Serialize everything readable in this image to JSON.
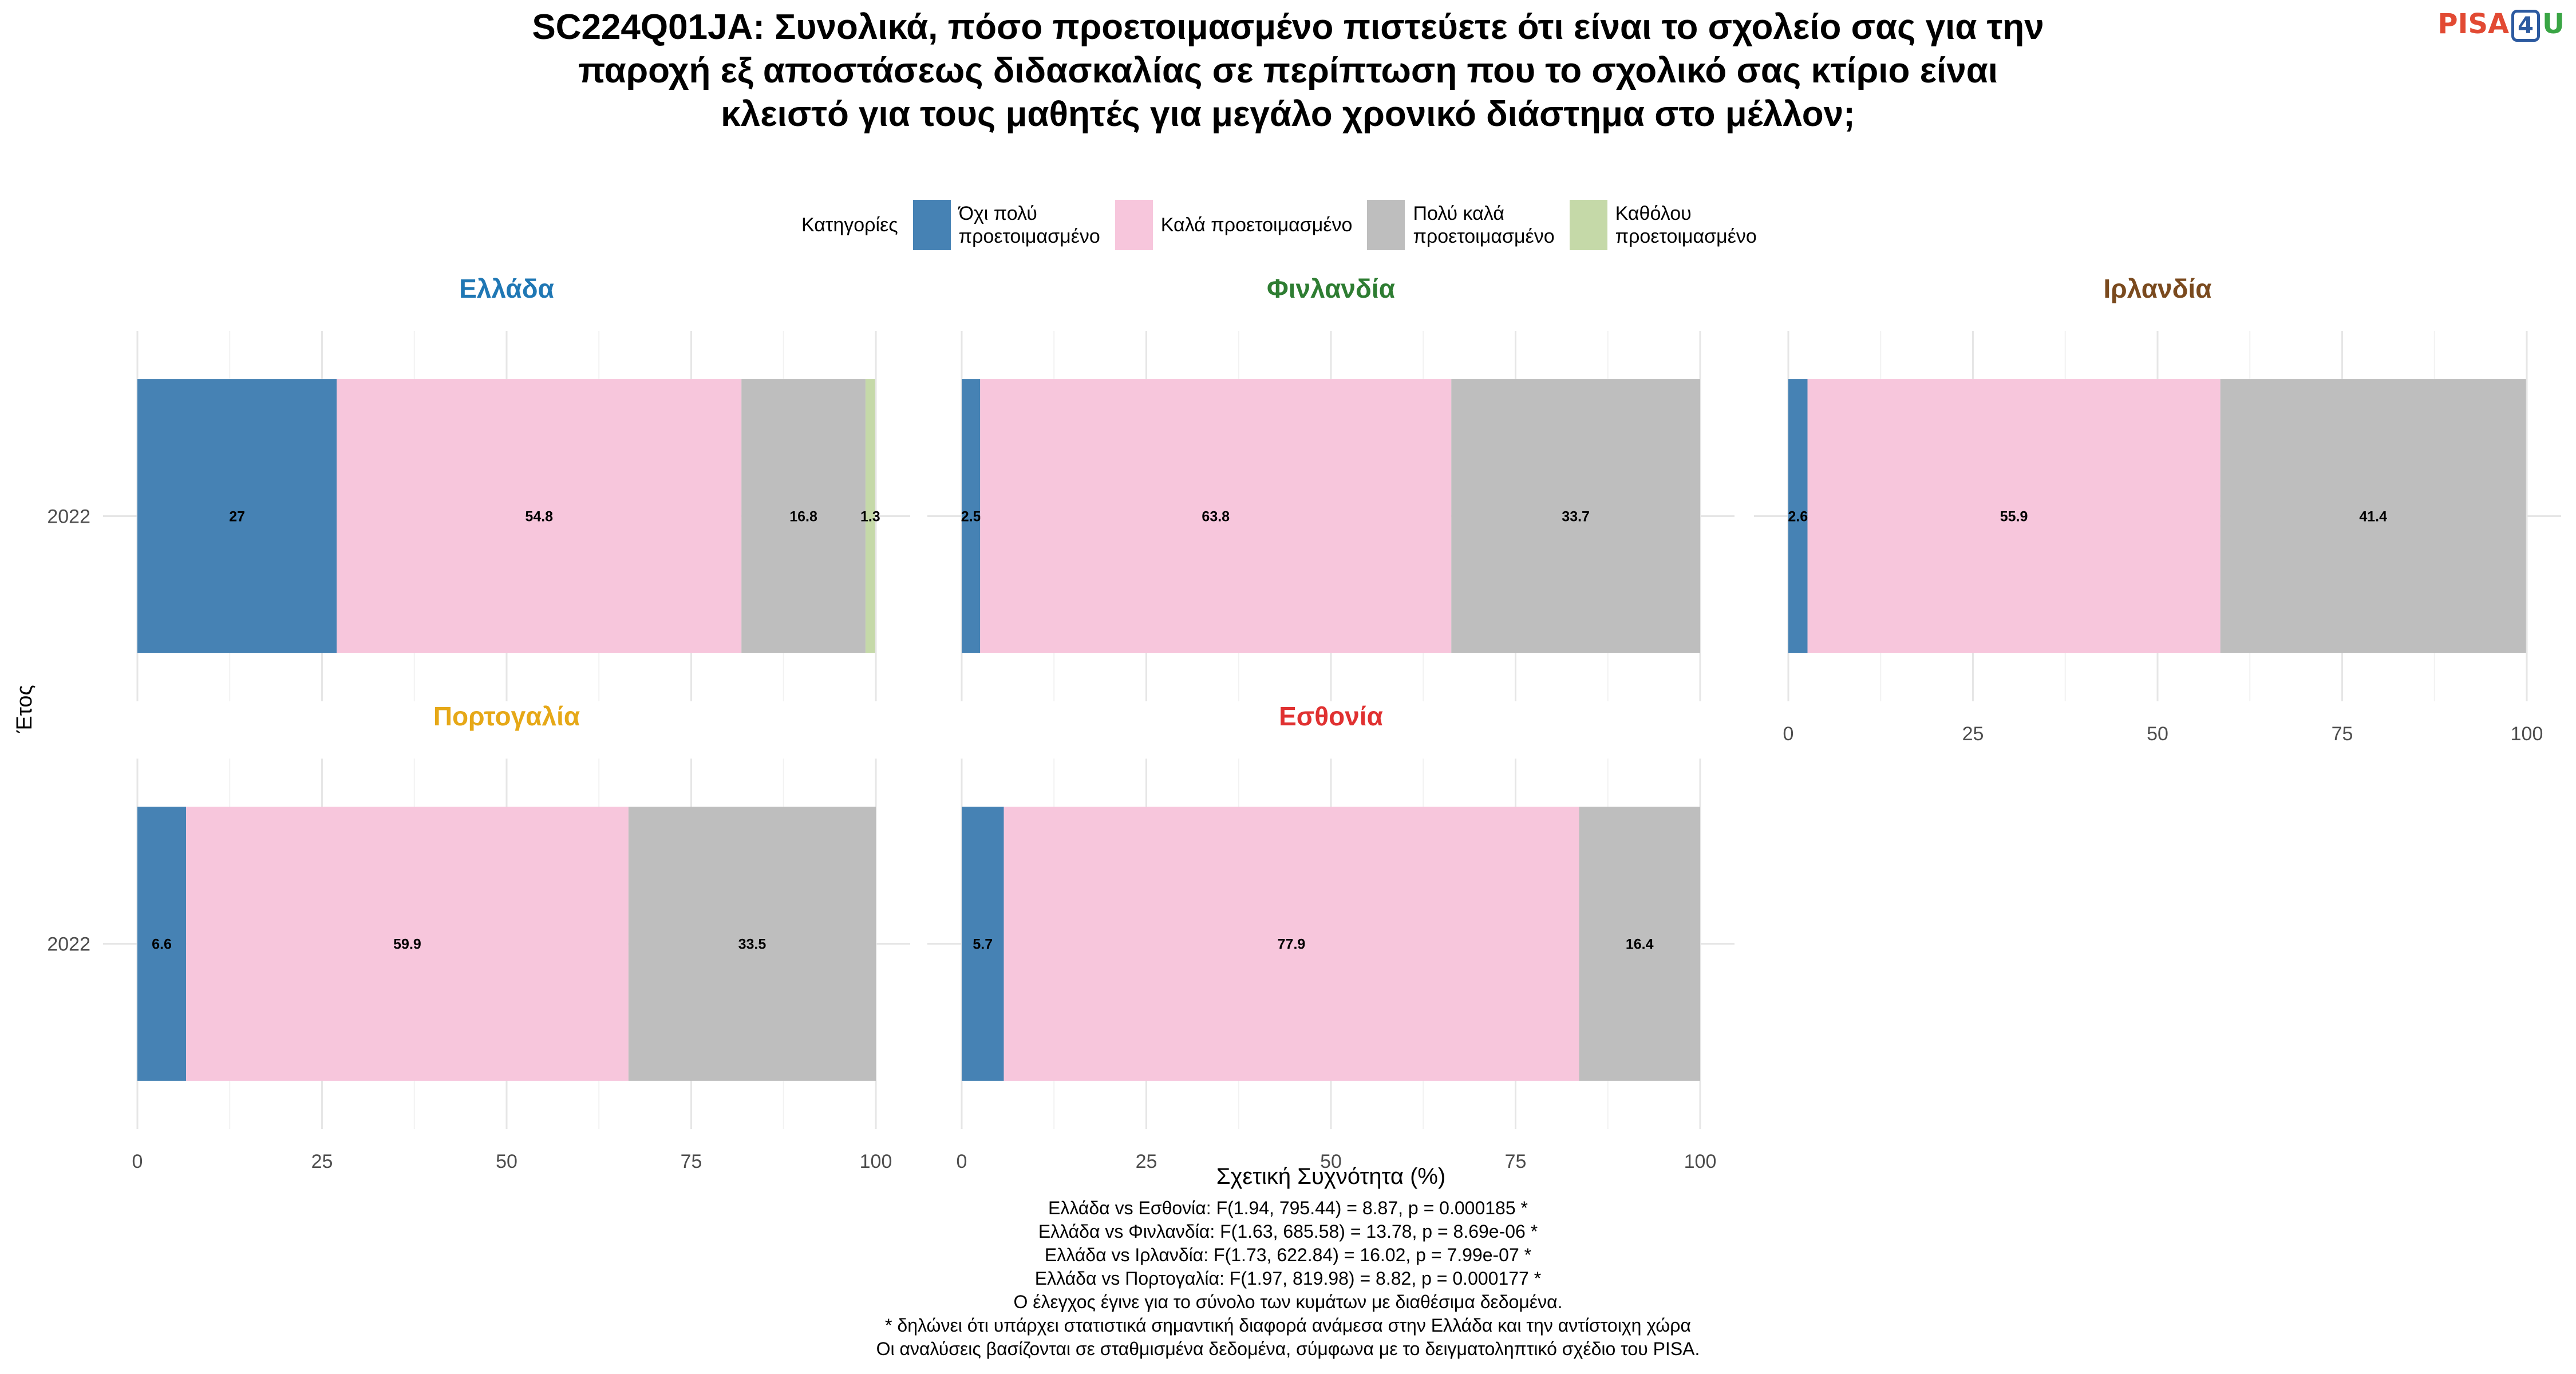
{
  "title": "SC224Q01JA: Συνολικά, πόσο προετοιμασμένο πιστεύετε ότι είναι το σχολείο σας για την παροχή εξ αποστάσεως διδασκαλίας σε περίπτωση που το σχολικό σας κτίριο είναι κλειστό για τους μαθητές για μεγάλο χρονικό διάστημα στο μέλλον;",
  "logo": {
    "pisa": "PISA",
    "four": "4",
    "u": "U"
  },
  "legend": {
    "title": "Κατηγορίες",
    "items": [
      {
        "label": "Όχι πολύ\nπροετοιμασμένο",
        "color": "#4682b4"
      },
      {
        "label": "Καλά προετοιμασμένο",
        "color": "#f7c6dc"
      },
      {
        "label": "Πολύ καλά\nπροετοιμασμένο",
        "color": "#bebebe"
      },
      {
        "label": "Καθόλου\nπροετοιμασμένο",
        "color": "#c5d9a8"
      }
    ]
  },
  "y_axis_label": "Έτος",
  "x_axis_label": "Σχετική Συχνότητα (%)",
  "chart_data": {
    "type": "bar",
    "orientation": "horizontal",
    "stacked": true,
    "xlim": [
      0,
      100
    ],
    "x_ticks": [
      0,
      25,
      50,
      75,
      100
    ],
    "categories": [
      "2022"
    ],
    "category_order": [
      "Όχι πολύ προετοιμασμένο",
      "Καλά προετοιμασμένο",
      "Πολύ καλά προετοιμασμένο",
      "Καθόλου προετοιμασμένο"
    ],
    "panels": [
      {
        "country": "Ελλάδα",
        "title_color": "#1f77b4",
        "values": [
          27,
          54.8,
          16.8,
          1.3
        ],
        "labels": [
          "27",
          "54.8",
          "16.8",
          "1.3"
        ]
      },
      {
        "country": "Φινλανδία",
        "title_color": "#2e7d32",
        "values": [
          2.5,
          63.8,
          33.7,
          0
        ],
        "labels": [
          "2.5",
          "63.8",
          "33.7",
          ""
        ]
      },
      {
        "country": "Ιρλανδία",
        "title_color": "#7a4a1e",
        "values": [
          2.6,
          55.9,
          41.4,
          0
        ],
        "labels": [
          "2.6",
          "55.9",
          "41.4",
          ""
        ]
      },
      {
        "country": "Πορτογαλία",
        "title_color": "#e6a817",
        "values": [
          6.6,
          59.9,
          33.5,
          0
        ],
        "labels": [
          "6.6",
          "59.9",
          "33.5",
          ""
        ]
      },
      {
        "country": "Εσθονία",
        "title_color": "#e03131",
        "values": [
          5.7,
          77.9,
          16.4,
          0
        ],
        "labels": [
          "5.7",
          "77.9",
          "16.4",
          ""
        ]
      }
    ]
  },
  "notes": [
    "Ελλάδα vs Εσθονία: F(1.94, 795.44) = 8.87, p = 0.000185 *",
    "Ελλάδα vs Φινλανδία: F(1.63, 685.58) = 13.78, p = 8.69e-06 *",
    "Ελλάδα vs Ιρλανδία: F(1.73, 622.84) = 16.02, p = 7.99e-07 *",
    "Ελλάδα vs Πορτογαλία: F(1.97, 819.98) = 8.82, p = 0.000177 *",
    "Ο έλεγχος έγινε για το σύνολο των κυμάτων με διαθέσιμα δεδομένα.",
    "* δηλώνει ότι υπάρχει στατιστικά σημαντική διαφορά ανάμεσα στην Ελλάδα και την αντίστοιχη χώρα",
    "Οι αναλύσεις βασίζονται σε σταθμισμένα δεδομένα, σύμφωνα με το δειγματοληπτικό σχέδιο του PISA."
  ]
}
